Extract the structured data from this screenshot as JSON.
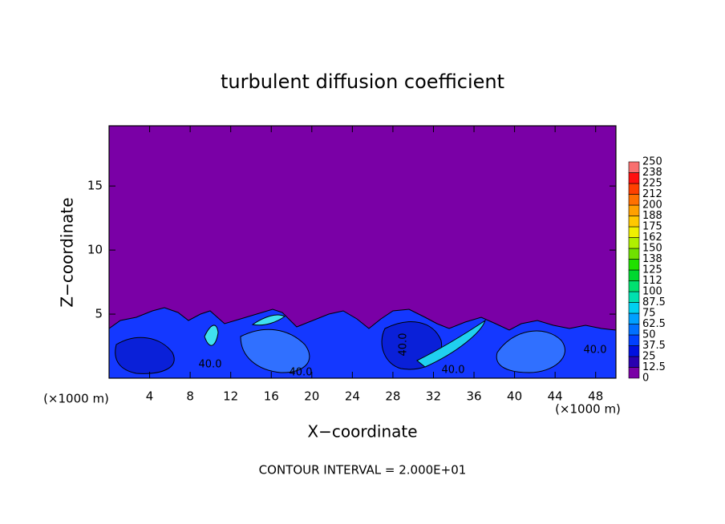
{
  "chart_data": {
    "type": "contour",
    "title": "turbulent diffusion coefficient",
    "xlabel": "X−coordinate",
    "ylabel": "Z−coordinate",
    "unit_label": "(×1000 m)",
    "xlim": [
      0,
      50
    ],
    "xticks": [
      4,
      8,
      12,
      16,
      20,
      24,
      28,
      32,
      36,
      40,
      44,
      48
    ],
    "ylim": [
      0,
      19.7
    ],
    "yticks": [
      5,
      10,
      15
    ],
    "background_color": "#7a00a6",
    "colorbar": {
      "levels": [
        0,
        12.5,
        25,
        37.5,
        50,
        62.5,
        75,
        87.5,
        100,
        112,
        125,
        138,
        150,
        162,
        175,
        188,
        200,
        212,
        225,
        238,
        250
      ],
      "colors": [
        "#7a00a6",
        "#2a00b0",
        "#0010e0",
        "#0040ff",
        "#0070ff",
        "#00a0ff",
        "#00d0f0",
        "#00e0b0",
        "#00e070",
        "#00d830",
        "#20e000",
        "#70e000",
        "#b0f000",
        "#f0f000",
        "#ffc800",
        "#ffa000",
        "#ff7000",
        "#ff4000",
        "#ff1010",
        "#f87070"
      ]
    },
    "contour_labels": [
      "40.0",
      "40.0",
      "40.0",
      "40.0",
      "40.0"
    ],
    "footer": "CONTOUR INTERVAL = 2.000E+01"
  }
}
